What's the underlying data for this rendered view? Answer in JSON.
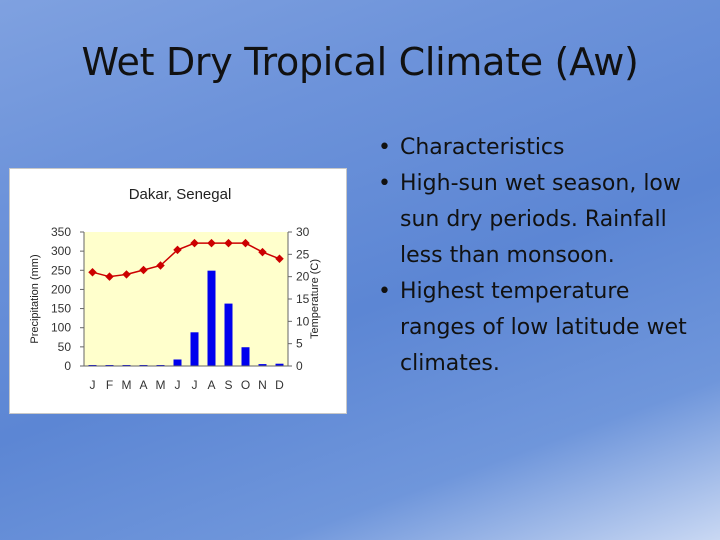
{
  "slide": {
    "title": "Wet Dry Tropical Climate (Aw)"
  },
  "bullets": [
    "Characteristics",
    "High-sun wet season, low sun dry periods. Rainfall less than monsoon.",
    "Highest temperature ranges of low latitude wet climates."
  ],
  "chart_data": {
    "type": "bar+line",
    "title": "Dakar, Senegal",
    "categories": [
      "J",
      "F",
      "M",
      "A",
      "M",
      "J",
      "J",
      "A",
      "S",
      "O",
      "N",
      "D"
    ],
    "series": [
      {
        "name": "Precipitation (mm)",
        "kind": "bar",
        "axis": "left",
        "color": "#0000ee",
        "values": [
          1,
          1,
          0,
          0,
          1,
          17,
          88,
          249,
          163,
          49,
          5,
          6
        ]
      },
      {
        "name": "Temperature (C)",
        "kind": "line",
        "axis": "right",
        "color": "#cc0000",
        "values": [
          21,
          20,
          20.5,
          21.5,
          22.5,
          26,
          27.5,
          27.5,
          27.5,
          27.5,
          25.5,
          24
        ]
      }
    ],
    "ylabel_left": "Precipitation (mm)",
    "ylabel_right": "Temperature (C)",
    "ylim_left": [
      0,
      350
    ],
    "ylim_right": [
      0,
      30
    ],
    "yticks_left": [
      0,
      50,
      100,
      150,
      200,
      250,
      300,
      350
    ],
    "yticks_right": [
      0,
      5,
      10,
      15,
      20,
      25,
      30
    ],
    "plot_background": "#ffffcc",
    "grid": false
  }
}
